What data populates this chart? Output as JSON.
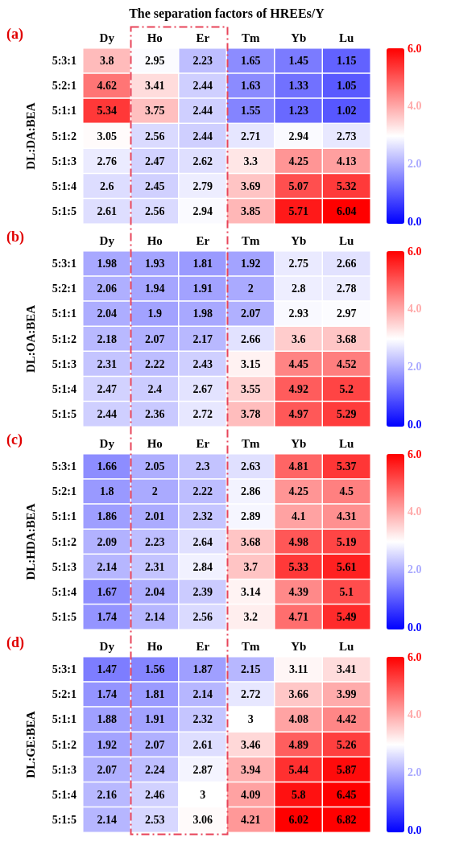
{
  "chart_data": [
    {
      "type": "heatmap",
      "title": "The separation factors of HREEs/Y",
      "ylabel": "DL:DA:BEA",
      "annotations": [
        "(a)"
      ],
      "categories": [
        "Dy",
        "Ho",
        "Er",
        "Tm",
        "Yb",
        "Lu"
      ],
      "y_categories": [
        "5:3:1",
        "5:2:1",
        "5:1:1",
        "5:1:2",
        "5:1:3",
        "5:1:4",
        "5:1:5"
      ],
      "cells": [
        [
          3.8,
          2.95,
          2.23,
          1.65,
          1.45,
          1.15
        ],
        [
          4.62,
          3.41,
          2.44,
          1.63,
          1.33,
          1.05
        ],
        [
          5.34,
          3.75,
          2.44,
          1.55,
          1.23,
          1.02
        ],
        [
          3.05,
          2.56,
          2.44,
          2.71,
          2.94,
          2.73
        ],
        [
          2.76,
          2.47,
          2.62,
          3.3,
          4.25,
          4.13
        ],
        [
          2.6,
          2.45,
          2.79,
          3.69,
          5.07,
          5.32
        ],
        [
          2.61,
          2.56,
          2.94,
          3.85,
          5.71,
          6.04
        ]
      ],
      "clim": [
        0,
        6
      ],
      "cticks": [
        {
          "value": 0,
          "label": "0.0"
        },
        {
          "value": 2,
          "label": "2.0"
        },
        {
          "value": 4,
          "label": "4.0"
        },
        {
          "value": 6,
          "label": "6.0"
        }
      ],
      "data_labels": true
    },
    {
      "type": "heatmap",
      "ylabel": "DL:OA:BEA",
      "annotations": [
        "(b)"
      ],
      "categories": [
        "Dy",
        "Ho",
        "Er",
        "Tm",
        "Yb",
        "Lu"
      ],
      "y_categories": [
        "5:3:1",
        "5:2:1",
        "5:1:1",
        "5:1:2",
        "5:1:3",
        "5:1:4",
        "5:1:5"
      ],
      "cells": [
        [
          1.98,
          1.93,
          1.81,
          1.92,
          2.75,
          2.66
        ],
        [
          2.06,
          1.94,
          1.91,
          2,
          2.8,
          2.78
        ],
        [
          2.04,
          1.9,
          1.98,
          2.07,
          2.93,
          2.97
        ],
        [
          2.18,
          2.07,
          2.17,
          2.66,
          3.6,
          3.68
        ],
        [
          2.31,
          2.22,
          2.43,
          3.15,
          4.45,
          4.52
        ],
        [
          2.47,
          2.4,
          2.67,
          3.55,
          4.92,
          5.2
        ],
        [
          2.44,
          2.36,
          2.72,
          3.78,
          4.97,
          5.29
        ]
      ],
      "clim": [
        0,
        6
      ],
      "cticks": [
        {
          "value": 0,
          "label": "0.0"
        },
        {
          "value": 2,
          "label": "2.0"
        },
        {
          "value": 4,
          "label": "4.0"
        },
        {
          "value": 6,
          "label": "6.0"
        }
      ],
      "data_labels": true
    },
    {
      "type": "heatmap",
      "ylabel": "DL:HDA:BEA",
      "annotations": [
        "(c)"
      ],
      "categories": [
        "Dy",
        "Ho",
        "Er",
        "Tm",
        "Yb",
        "Lu"
      ],
      "y_categories": [
        "5:3:1",
        "5:2:1",
        "5:1:1",
        "5:1:2",
        "5:1:3",
        "5:1:4",
        "5:1:5"
      ],
      "cells": [
        [
          1.66,
          2.05,
          2.3,
          2.63,
          4.81,
          5.37
        ],
        [
          1.8,
          2,
          2.22,
          2.86,
          4.25,
          4.5
        ],
        [
          1.86,
          2.01,
          2.32,
          2.89,
          4.1,
          4.31
        ],
        [
          2.09,
          2.23,
          2.64,
          3.68,
          4.98,
          5.19
        ],
        [
          2.14,
          2.31,
          2.84,
          3.7,
          5.33,
          5.61
        ],
        [
          1.67,
          2.04,
          2.39,
          3.14,
          4.39,
          5.1
        ],
        [
          1.74,
          2.14,
          2.56,
          3.2,
          4.71,
          5.49
        ]
      ],
      "clim": [
        0,
        6
      ],
      "cticks": [
        {
          "value": 0,
          "label": "0.0"
        },
        {
          "value": 2,
          "label": "2.0"
        },
        {
          "value": 4,
          "label": "4.0"
        },
        {
          "value": 6,
          "label": "6.0"
        }
      ],
      "data_labels": true
    },
    {
      "type": "heatmap",
      "ylabel": "DL:GE:BEA",
      "annotations": [
        "(d)"
      ],
      "categories": [
        "Dy",
        "Ho",
        "Er",
        "Tm",
        "Yb",
        "Lu"
      ],
      "y_categories": [
        "5:3:1",
        "5:2:1",
        "5:1:1",
        "5:1:2",
        "5:1:3",
        "5:1:4",
        "5:1:5"
      ],
      "cells": [
        [
          1.47,
          1.56,
          1.87,
          2.15,
          3.11,
          3.41
        ],
        [
          1.74,
          1.81,
          2.14,
          2.72,
          3.66,
          3.99
        ],
        [
          1.88,
          1.91,
          2.32,
          3,
          4.08,
          4.42
        ],
        [
          1.92,
          2.07,
          2.61,
          3.46,
          4.89,
          5.26
        ],
        [
          2.07,
          2.24,
          2.87,
          3.94,
          5.44,
          5.87
        ],
        [
          2.16,
          2.46,
          3,
          4.09,
          5.8,
          6.45
        ],
        [
          2.14,
          2.53,
          3.06,
          4.21,
          6.02,
          6.82
        ]
      ],
      "clim": [
        0,
        6
      ],
      "cticks": [
        {
          "value": 0,
          "label": "0.0"
        },
        {
          "value": 2,
          "label": "2.0"
        },
        {
          "value": 4,
          "label": "4.0"
        },
        {
          "value": 6,
          "label": "6.0"
        }
      ],
      "data_labels": true
    }
  ]
}
